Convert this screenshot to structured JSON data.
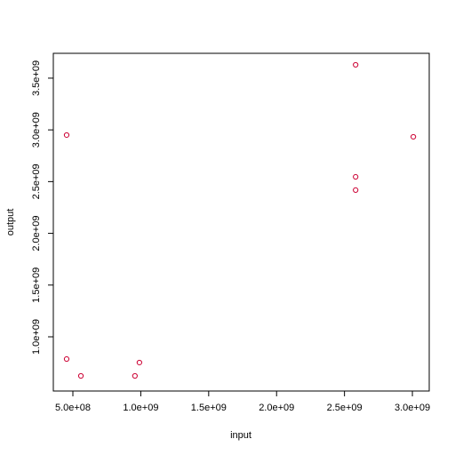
{
  "chart_data": {
    "type": "scatter",
    "x_label": "input",
    "y_label": "output",
    "series": [
      {
        "color": "#cc0033",
        "x": [
          454000000,
          454000000,
          559000000,
          957000000,
          990000000,
          2582000000,
          2582000000,
          2582000000,
          3007000000
        ],
        "values": [
          2950000000,
          785000000,
          622000000,
          622000000,
          751000000,
          3629000000,
          2546000000,
          2418000000,
          2933000000
        ]
      }
    ],
    "xlim": [
      356000000,
      3124000000
    ],
    "ylim": [
      476000000,
      3740000000
    ],
    "xticks": [
      {
        "value": 500000000,
        "label": "5.0e+08"
      },
      {
        "value": 1000000000,
        "label": "1.0e+09"
      },
      {
        "value": 1500000000,
        "label": "1.5e+09"
      },
      {
        "value": 2000000000,
        "label": "2.0e+09"
      },
      {
        "value": 2500000000,
        "label": "2.5e+09"
      },
      {
        "value": 3000000000,
        "label": "3.0e+09"
      }
    ],
    "yticks": [
      {
        "value": 1000000000,
        "label": "1.0e+09"
      },
      {
        "value": 1500000000,
        "label": "1.5e+09"
      },
      {
        "value": 2000000000,
        "label": "2.0e+09"
      },
      {
        "value": 2500000000,
        "label": "2.5e+09"
      },
      {
        "value": 3000000000,
        "label": "3.0e+09"
      },
      {
        "value": 3500000000,
        "label": "3.5e+09"
      }
    ]
  }
}
